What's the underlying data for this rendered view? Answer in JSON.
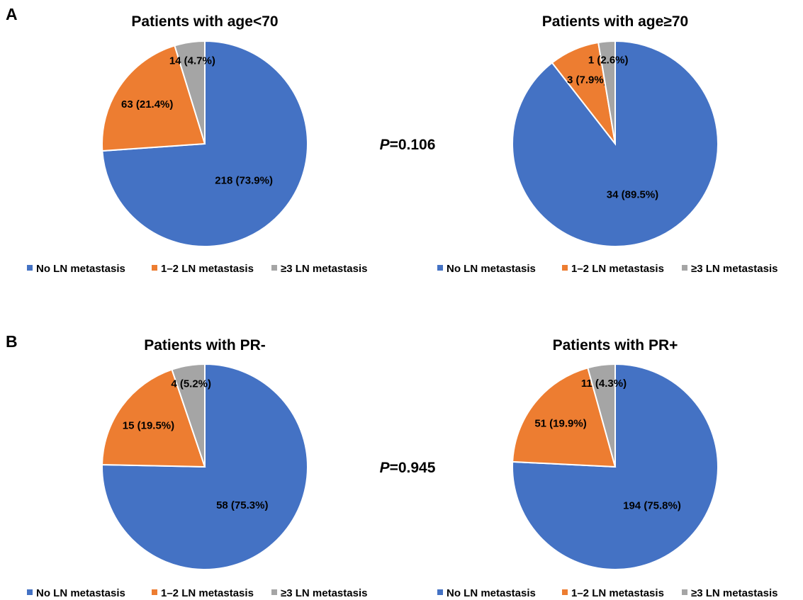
{
  "panels": [
    {
      "letter": "A",
      "p_label": "P",
      "p_value": "=0.106"
    },
    {
      "letter": "B",
      "p_label": "P",
      "p_value": "=0.945"
    }
  ],
  "legend": {
    "entries": [
      "No LN metastasis",
      "1–2 LN metastasis",
      "≥3 LN metastasis"
    ],
    "colors": [
      "#4472C4",
      "#ED7D31",
      "#A5A5A5"
    ]
  },
  "chart_data": [
    {
      "type": "pie",
      "title": "Patients with age<70",
      "categories": [
        "No LN metastasis",
        "1–2 LN metastasis",
        "≥3 LN metastasis"
      ],
      "values": [
        218,
        63,
        14
      ],
      "labels": [
        "218 (73.9%)",
        "63 (21.4%)",
        "14 (4.7%)"
      ],
      "colors": [
        "#4472C4",
        "#ED7D31",
        "#A5A5A5"
      ],
      "legend_position": "bottom"
    },
    {
      "type": "pie",
      "title": "Patients with age≥70",
      "categories": [
        "No LN metastasis",
        "1–2 LN metastasis",
        "≥3 LN metastasis"
      ],
      "values": [
        34,
        3,
        1
      ],
      "labels": [
        "34 (89.5%)",
        "3 (7.9%)",
        "1 (2.6%)"
      ],
      "colors": [
        "#4472C4",
        "#ED7D31",
        "#A5A5A5"
      ],
      "legend_position": "bottom"
    },
    {
      "type": "pie",
      "title": "Patients with PR-",
      "categories": [
        "No LN metastasis",
        "1–2 LN metastasis",
        "≥3 LN metastasis"
      ],
      "values": [
        58,
        15,
        4
      ],
      "labels": [
        "58 (75.3%)",
        "15 (19.5%)",
        "4 (5.2%)"
      ],
      "colors": [
        "#4472C4",
        "#ED7D31",
        "#A5A5A5"
      ],
      "legend_position": "bottom"
    },
    {
      "type": "pie",
      "title": "Patients with PR+",
      "categories": [
        "No LN metastasis",
        "1–2 LN metastasis",
        "≥3 LN metastasis"
      ],
      "values": [
        194,
        51,
        11
      ],
      "labels": [
        "194 (75.8%)",
        "51 (19.9%)",
        "11 (4.3%)"
      ],
      "colors": [
        "#4472C4",
        "#ED7D31",
        "#A5A5A5"
      ],
      "legend_position": "bottom"
    }
  ]
}
